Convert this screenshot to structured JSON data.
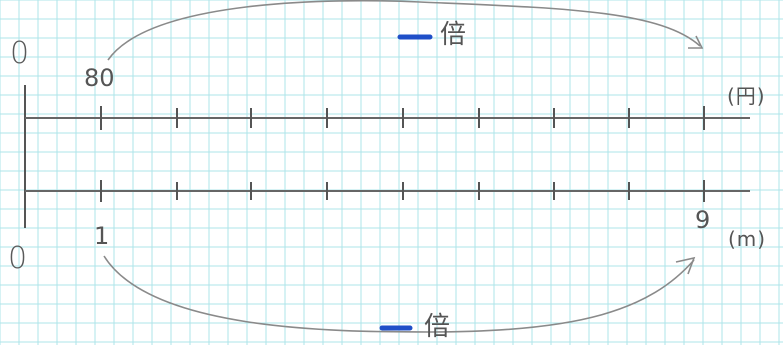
{
  "diagram": {
    "upper_line": {
      "zero_label": "0",
      "start_value": "80",
      "unit": "(円)",
      "multiplier_label": "倍"
    },
    "lower_line": {
      "zero_label": "0",
      "start_value": "1",
      "end_value": "9",
      "unit": "(m)",
      "multiplier_label": "倍"
    },
    "colors": {
      "grid": "#aee4ea",
      "pencil": "#555555",
      "blank": "#1f4fc8"
    }
  }
}
